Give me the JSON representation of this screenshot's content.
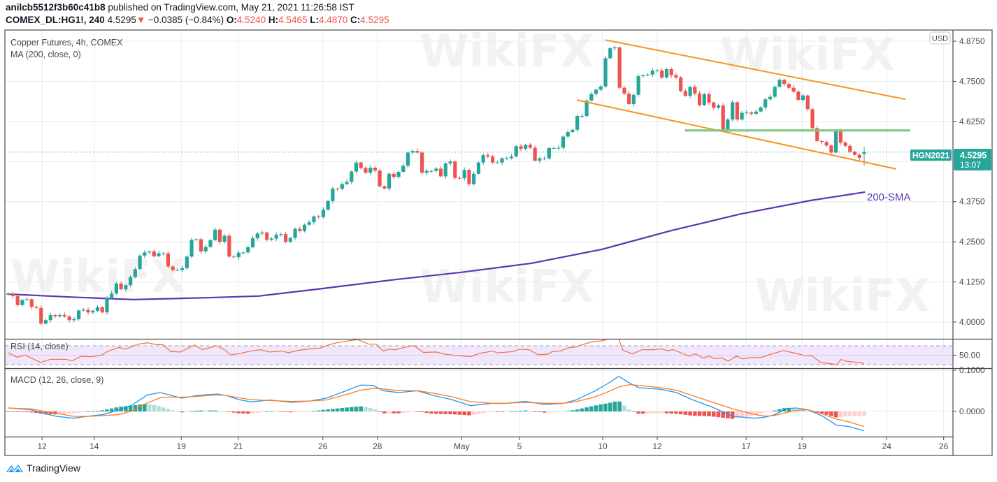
{
  "header": {
    "author": "anilcb5512f3b60c41b8",
    "published": "published on TradingView.com, May 21, 2021 11:26:58 IST",
    "symbol": "COMEX_DL:HG1!, 240",
    "last": "4.5295",
    "change_arrow": "▼",
    "change": "−0.0385 (−0.84%)",
    "o_label": "O:",
    "o": "4.5240",
    "h_label": "H:",
    "h": "4.5465",
    "l_label": "L:",
    "l": "4.4870",
    "c_label": "C:",
    "c": "4.5295"
  },
  "colors": {
    "up": "#26a69a",
    "down": "#ef5350",
    "ma": "#5e35b1",
    "channel": "#f7941d",
    "support": "#81c784",
    "rsi": "#f0713a",
    "macd": "#2196f3",
    "signal": "#ff7b1c"
  },
  "footer": {
    "brand": "TradingView"
  },
  "watermark": "WikiFX",
  "chart_data": {
    "type": "candlestick",
    "title": "Copper Futures, 4h, COMEX",
    "currency": "USD",
    "ma_legend": "MA (200, close, 0)",
    "ma_annotation": "200-SMA",
    "symbol_tag": "HGN2021",
    "price_label": "4.5295",
    "countdown": "13:07",
    "ylim": [
      3.97,
      4.9
    ],
    "y_ticks": [
      {
        "value": 4.875,
        "label": "4.8750"
      },
      {
        "value": 4.75,
        "label": "4.7500"
      },
      {
        "value": 4.625,
        "label": "4.6250"
      },
      {
        "value": 4.5,
        "label": "4.5000",
        "hidden": true
      },
      {
        "value": 4.375,
        "label": "4.3750"
      },
      {
        "value": 4.25,
        "label": "4.2500"
      },
      {
        "value": 4.125,
        "label": "4.1250"
      },
      {
        "value": 4.0,
        "label": "4.0000"
      }
    ],
    "x_ticks": [
      {
        "index": 7.2,
        "label": "12"
      },
      {
        "index": 18.3,
        "label": "14"
      },
      {
        "index": 36.8,
        "label": "19"
      },
      {
        "index": 48.9,
        "label": "21"
      },
      {
        "index": 66.9,
        "label": "26"
      },
      {
        "index": 78.5,
        "label": "28"
      },
      {
        "index": 96.4,
        "label": "May"
      },
      {
        "index": 108.7,
        "label": "5"
      },
      {
        "index": 126.4,
        "label": "10"
      },
      {
        "index": 138.0,
        "label": "12"
      },
      {
        "index": 156.9,
        "label": "17"
      },
      {
        "index": 168.8,
        "label": "19"
      },
      {
        "index": 186.8,
        "label": "24"
      },
      {
        "index": 198.9,
        "label": "26"
      }
    ],
    "candles": {
      "first_open": 4.085,
      "closes": [
        4.089,
        4.081,
        4.053,
        4.069,
        4.071,
        4.047,
        4.044,
        3.995,
        4.006,
        4.022,
        4.018,
        4.022,
        4.017,
        4.006,
        4.009,
        4.036,
        4.038,
        4.03,
        4.035,
        4.046,
        4.03,
        4.076,
        4.089,
        4.12,
        4.102,
        4.115,
        4.14,
        4.165,
        4.207,
        4.217,
        4.22,
        4.205,
        4.214,
        4.214,
        4.173,
        4.162,
        4.162,
        4.168,
        4.204,
        4.256,
        4.258,
        4.22,
        4.234,
        4.255,
        4.288,
        4.25,
        4.269,
        4.204,
        4.202,
        4.216,
        4.217,
        4.233,
        4.261,
        4.276,
        4.279,
        4.256,
        4.26,
        4.272,
        4.274,
        4.25,
        4.262,
        4.29,
        4.284,
        4.303,
        4.311,
        4.329,
        4.327,
        4.35,
        4.377,
        4.416,
        4.415,
        4.43,
        4.437,
        4.469,
        4.497,
        4.48,
        4.465,
        4.481,
        4.472,
        4.423,
        4.416,
        4.462,
        4.452,
        4.468,
        4.487,
        4.528,
        4.533,
        4.528,
        4.465,
        4.471,
        4.471,
        4.478,
        4.454,
        4.494,
        4.5,
        4.449,
        4.448,
        4.474,
        4.43,
        4.462,
        4.497,
        4.52,
        4.516,
        4.497,
        4.497,
        4.51,
        4.511,
        4.516,
        4.548,
        4.54,
        4.552,
        4.543,
        4.503,
        4.51,
        4.51,
        4.542,
        4.542,
        4.543,
        4.578,
        4.592,
        4.599,
        4.642,
        4.642,
        4.69,
        4.711,
        4.724,
        4.734,
        4.822,
        4.853,
        4.856,
        4.73,
        4.712,
        4.679,
        4.708,
        4.766,
        4.769,
        4.771,
        4.784,
        4.784,
        4.762,
        4.788,
        4.769,
        4.762,
        4.72,
        4.705,
        4.733,
        4.712,
        4.676,
        4.71,
        4.684,
        4.668,
        4.675,
        4.597,
        4.631,
        4.685,
        4.631,
        4.652,
        4.653,
        4.649,
        4.656,
        4.669,
        4.694,
        4.702,
        4.733,
        4.755,
        4.742,
        4.73,
        4.718,
        4.692,
        4.706,
        4.663,
        4.604,
        4.564,
        4.561,
        4.55,
        4.528,
        4.595,
        4.559,
        4.549,
        4.531,
        4.521,
        4.512,
        4.5295
      ],
      "last": {
        "open": 4.524,
        "high": 4.5465,
        "low": 4.487,
        "close": 4.5295
      }
    },
    "ma200": [
      [
        0,
        4.087
      ],
      [
        13.1,
        4.078
      ],
      [
        26.5,
        4.07
      ],
      [
        42.9,
        4.076
      ],
      [
        53.3,
        4.081
      ],
      [
        66.6,
        4.104
      ],
      [
        81.5,
        4.131
      ],
      [
        96.4,
        4.155
      ],
      [
        111.2,
        4.183
      ],
      [
        126.1,
        4.226
      ],
      [
        141,
        4.285
      ],
      [
        155.8,
        4.337
      ],
      [
        170.7,
        4.379
      ],
      [
        182.2,
        4.405
      ]
    ],
    "trendlines": [
      {
        "name": "channel-upper",
        "from": [
          127,
          4.879
        ],
        "to": [
          190.8,
          4.694
        ]
      },
      {
        "name": "channel-lower",
        "from": [
          120.9,
          4.692
        ],
        "to": [
          188.8,
          4.477
        ]
      },
      {
        "name": "support-horizontal",
        "from": [
          143.9,
          4.597
        ],
        "to": [
          191.8,
          4.597
        ]
      }
    ],
    "rsi": {
      "legend": "RSI (14, close)",
      "tick_label": "50.00",
      "bands": [
        30,
        50,
        70
      ],
      "points": [
        [
          0,
          55.4
        ],
        [
          1.9,
          45.6
        ],
        [
          3.6,
          50.5
        ],
        [
          6.9,
          34.4
        ],
        [
          8.9,
          41.2
        ],
        [
          12.3,
          41.2
        ],
        [
          13.6,
          38.3
        ],
        [
          15.6,
          48
        ],
        [
          17.6,
          46.6
        ],
        [
          19.9,
          50.5
        ],
        [
          21.3,
          58.8
        ],
        [
          23.6,
          66.6
        ],
        [
          24.9,
          62.7
        ],
        [
          27.6,
          73.4
        ],
        [
          29.6,
          76.3
        ],
        [
          31.6,
          72.4
        ],
        [
          32.9,
          72.4
        ],
        [
          34.6,
          57.8
        ],
        [
          36.6,
          56.8
        ],
        [
          39.6,
          71.5
        ],
        [
          41.3,
          61.7
        ],
        [
          44.3,
          70
        ],
        [
          46,
          61.7
        ],
        [
          47.3,
          50.5
        ],
        [
          49.3,
          53.9
        ],
        [
          51.6,
          58.8
        ],
        [
          53.6,
          61.7
        ],
        [
          55.6,
          56.8
        ],
        [
          58.3,
          58.8
        ],
        [
          59.6,
          55.4
        ],
        [
          61.6,
          60.2
        ],
        [
          64.3,
          63.7
        ],
        [
          66.3,
          65.1
        ],
        [
          68.3,
          72.4
        ],
        [
          70.3,
          77.3
        ],
        [
          74.3,
          83.2
        ],
        [
          76.7,
          73.4
        ],
        [
          78.3,
          73.4
        ],
        [
          79.7,
          58.8
        ],
        [
          81,
          62.7
        ],
        [
          82.3,
          61.7
        ],
        [
          84.3,
          66.6
        ],
        [
          86.3,
          70.5
        ],
        [
          88.3,
          55.9
        ],
        [
          91,
          56.8
        ],
        [
          93,
          51.9
        ],
        [
          95.7,
          49
        ],
        [
          98.3,
          47.1
        ],
        [
          100.3,
          53.9
        ],
        [
          102.9,
          58.8
        ],
        [
          104.1,
          54.9
        ],
        [
          107.4,
          57.8
        ],
        [
          108.7,
          62.7
        ],
        [
          110.7,
          61.7
        ],
        [
          112.7,
          51
        ],
        [
          114.7,
          52
        ],
        [
          115.7,
          57.8
        ],
        [
          117.4,
          58.8
        ],
        [
          119.1,
          65.6
        ],
        [
          120.7,
          67.6
        ],
        [
          122.1,
          72.4
        ],
        [
          124.1,
          78.3
        ],
        [
          126.7,
          81.2
        ],
        [
          128.1,
          87.1
        ],
        [
          129.7,
          87.1
        ],
        [
          130.7,
          60.7
        ],
        [
          132.7,
          52.9
        ],
        [
          134.8,
          61.7
        ],
        [
          137.4,
          61.7
        ],
        [
          138.8,
          63.7
        ],
        [
          140.1,
          59.8
        ],
        [
          141.4,
          61.7
        ],
        [
          144.8,
          48
        ],
        [
          146.1,
          52.9
        ],
        [
          147.8,
          44.1
        ],
        [
          149.1,
          48
        ],
        [
          150.1,
          43.2
        ],
        [
          151.8,
          44.1
        ],
        [
          153.1,
          37.3
        ],
        [
          154.8,
          48
        ],
        [
          156.1,
          42.2
        ],
        [
          158.1,
          45.1
        ],
        [
          160.1,
          45.1
        ],
        [
          162.1,
          52
        ],
        [
          164.8,
          59.8
        ],
        [
          167.5,
          53.9
        ],
        [
          169.5,
          49
        ],
        [
          170.8,
          49
        ],
        [
          172.8,
          34.4
        ],
        [
          175.4,
          31.5
        ],
        [
          176.1,
          29.5
        ],
        [
          177.1,
          41.2
        ],
        [
          178.1,
          37.3
        ],
        [
          180.8,
          34.4
        ],
        [
          182,
          32.4
        ]
      ]
    },
    "macd": {
      "legend": "MACD (12, 26, close, 9)",
      "tick_labels": [
        {
          "value": 0.1,
          "label": "0.1000"
        },
        {
          "value": 0.0,
          "label": "0.0000"
        }
      ],
      "macd": [
        [
          0,
          0.0085
        ],
        [
          4.9,
          0.004
        ],
        [
          7.3,
          -0.0045
        ],
        [
          10.3,
          -0.0119
        ],
        [
          13.9,
          -0.0164
        ],
        [
          16.9,
          -0.0119
        ],
        [
          20.3,
          -0.0073
        ],
        [
          23.6,
          0.004
        ],
        [
          26.3,
          0.0153
        ],
        [
          29.6,
          0.0401
        ],
        [
          32.3,
          0.0458
        ],
        [
          34.3,
          0.0401
        ],
        [
          36.9,
          0.0322
        ],
        [
          40.3,
          0.039
        ],
        [
          44.3,
          0.0424
        ],
        [
          46.3,
          0.039
        ],
        [
          49,
          0.0288
        ],
        [
          51.6,
          0.0232
        ],
        [
          55.6,
          0.0277
        ],
        [
          60.3,
          0.022
        ],
        [
          64.3,
          0.0254
        ],
        [
          67.6,
          0.0322
        ],
        [
          71.6,
          0.0492
        ],
        [
          74.9,
          0.0639
        ],
        [
          77.6,
          0.0633
        ],
        [
          79.7,
          0.0503
        ],
        [
          83,
          0.0458
        ],
        [
          87,
          0.0503
        ],
        [
          90.3,
          0.039
        ],
        [
          94.3,
          0.0288
        ],
        [
          98.3,
          0.0141
        ],
        [
          102.9,
          0.0198
        ],
        [
          105.4,
          0.0192
        ],
        [
          110,
          0.0243
        ],
        [
          114.1,
          0.0169
        ],
        [
          118.1,
          0.0198
        ],
        [
          120.7,
          0.0277
        ],
        [
          124.7,
          0.0492
        ],
        [
          128.1,
          0.0718
        ],
        [
          129.8,
          0.0854
        ],
        [
          132.1,
          0.069
        ],
        [
          134.1,
          0.0576
        ],
        [
          138.8,
          0.0537
        ],
        [
          142.1,
          0.0458
        ],
        [
          145.4,
          0.0288
        ],
        [
          149.4,
          0.0119
        ],
        [
          154.1,
          -0.0119
        ],
        [
          158.8,
          -0.0164
        ],
        [
          160.8,
          -0.0141
        ],
        [
          162.8,
          -0.0085
        ],
        [
          165.5,
          0.0068
        ],
        [
          167.5,
          0.0085
        ],
        [
          170.1,
          0.004
        ],
        [
          173.4,
          -0.013
        ],
        [
          176.1,
          -0.0333
        ],
        [
          178.8,
          -0.0367
        ],
        [
          182,
          -0.0469
        ]
      ],
      "signal": [
        [
          0,
          0.0085
        ],
        [
          4.9,
          0.0062
        ],
        [
          7.3,
          0.0011
        ],
        [
          10.3,
          -0.0045
        ],
        [
          13.9,
          -0.0119
        ],
        [
          16.9,
          -0.0119
        ],
        [
          20.3,
          -0.0102
        ],
        [
          23.6,
          -0.0073
        ],
        [
          26.3,
          0.0011
        ],
        [
          29.6,
          0.0209
        ],
        [
          32.3,
          0.0333
        ],
        [
          34.3,
          0.035
        ],
        [
          36.9,
          0.0345
        ],
        [
          40.3,
          0.0367
        ],
        [
          44.3,
          0.0401
        ],
        [
          46.3,
          0.039
        ],
        [
          49,
          0.0333
        ],
        [
          51.6,
          0.0288
        ],
        [
          55.6,
          0.0265
        ],
        [
          60.3,
          0.0243
        ],
        [
          64.3,
          0.0254
        ],
        [
          67.6,
          0.0277
        ],
        [
          71.6,
          0.0401
        ],
        [
          74.9,
          0.0514
        ],
        [
          77.6,
          0.0559
        ],
        [
          79.7,
          0.0548
        ],
        [
          83,
          0.0503
        ],
        [
          87,
          0.0503
        ],
        [
          90.3,
          0.0446
        ],
        [
          94.3,
          0.0356
        ],
        [
          98.3,
          0.0237
        ],
        [
          102.9,
          0.0198
        ],
        [
          105.4,
          0.0198
        ],
        [
          110,
          0.022
        ],
        [
          114.1,
          0.0198
        ],
        [
          118.1,
          0.0198
        ],
        [
          120.7,
          0.0237
        ],
        [
          124.7,
          0.035
        ],
        [
          128.1,
          0.0503
        ],
        [
          129.8,
          0.0593
        ],
        [
          132.1,
          0.065
        ],
        [
          134.1,
          0.0633
        ],
        [
          138.8,
          0.0576
        ],
        [
          142.1,
          0.0514
        ],
        [
          145.4,
          0.039
        ],
        [
          149.4,
          0.0237
        ],
        [
          154.1,
          0.0062
        ],
        [
          158.8,
          -0.0073
        ],
        [
          160.8,
          -0.0113
        ],
        [
          162.8,
          -0.0102
        ],
        [
          165.5,
          -0.0028
        ],
        [
          167.5,
          0.0028
        ],
        [
          170.1,
          0.004
        ],
        [
          173.4,
          -0.0073
        ],
        [
          176.1,
          -0.0186
        ],
        [
          178.8,
          -0.0254
        ],
        [
          182,
          -0.0367
        ]
      ]
    }
  }
}
